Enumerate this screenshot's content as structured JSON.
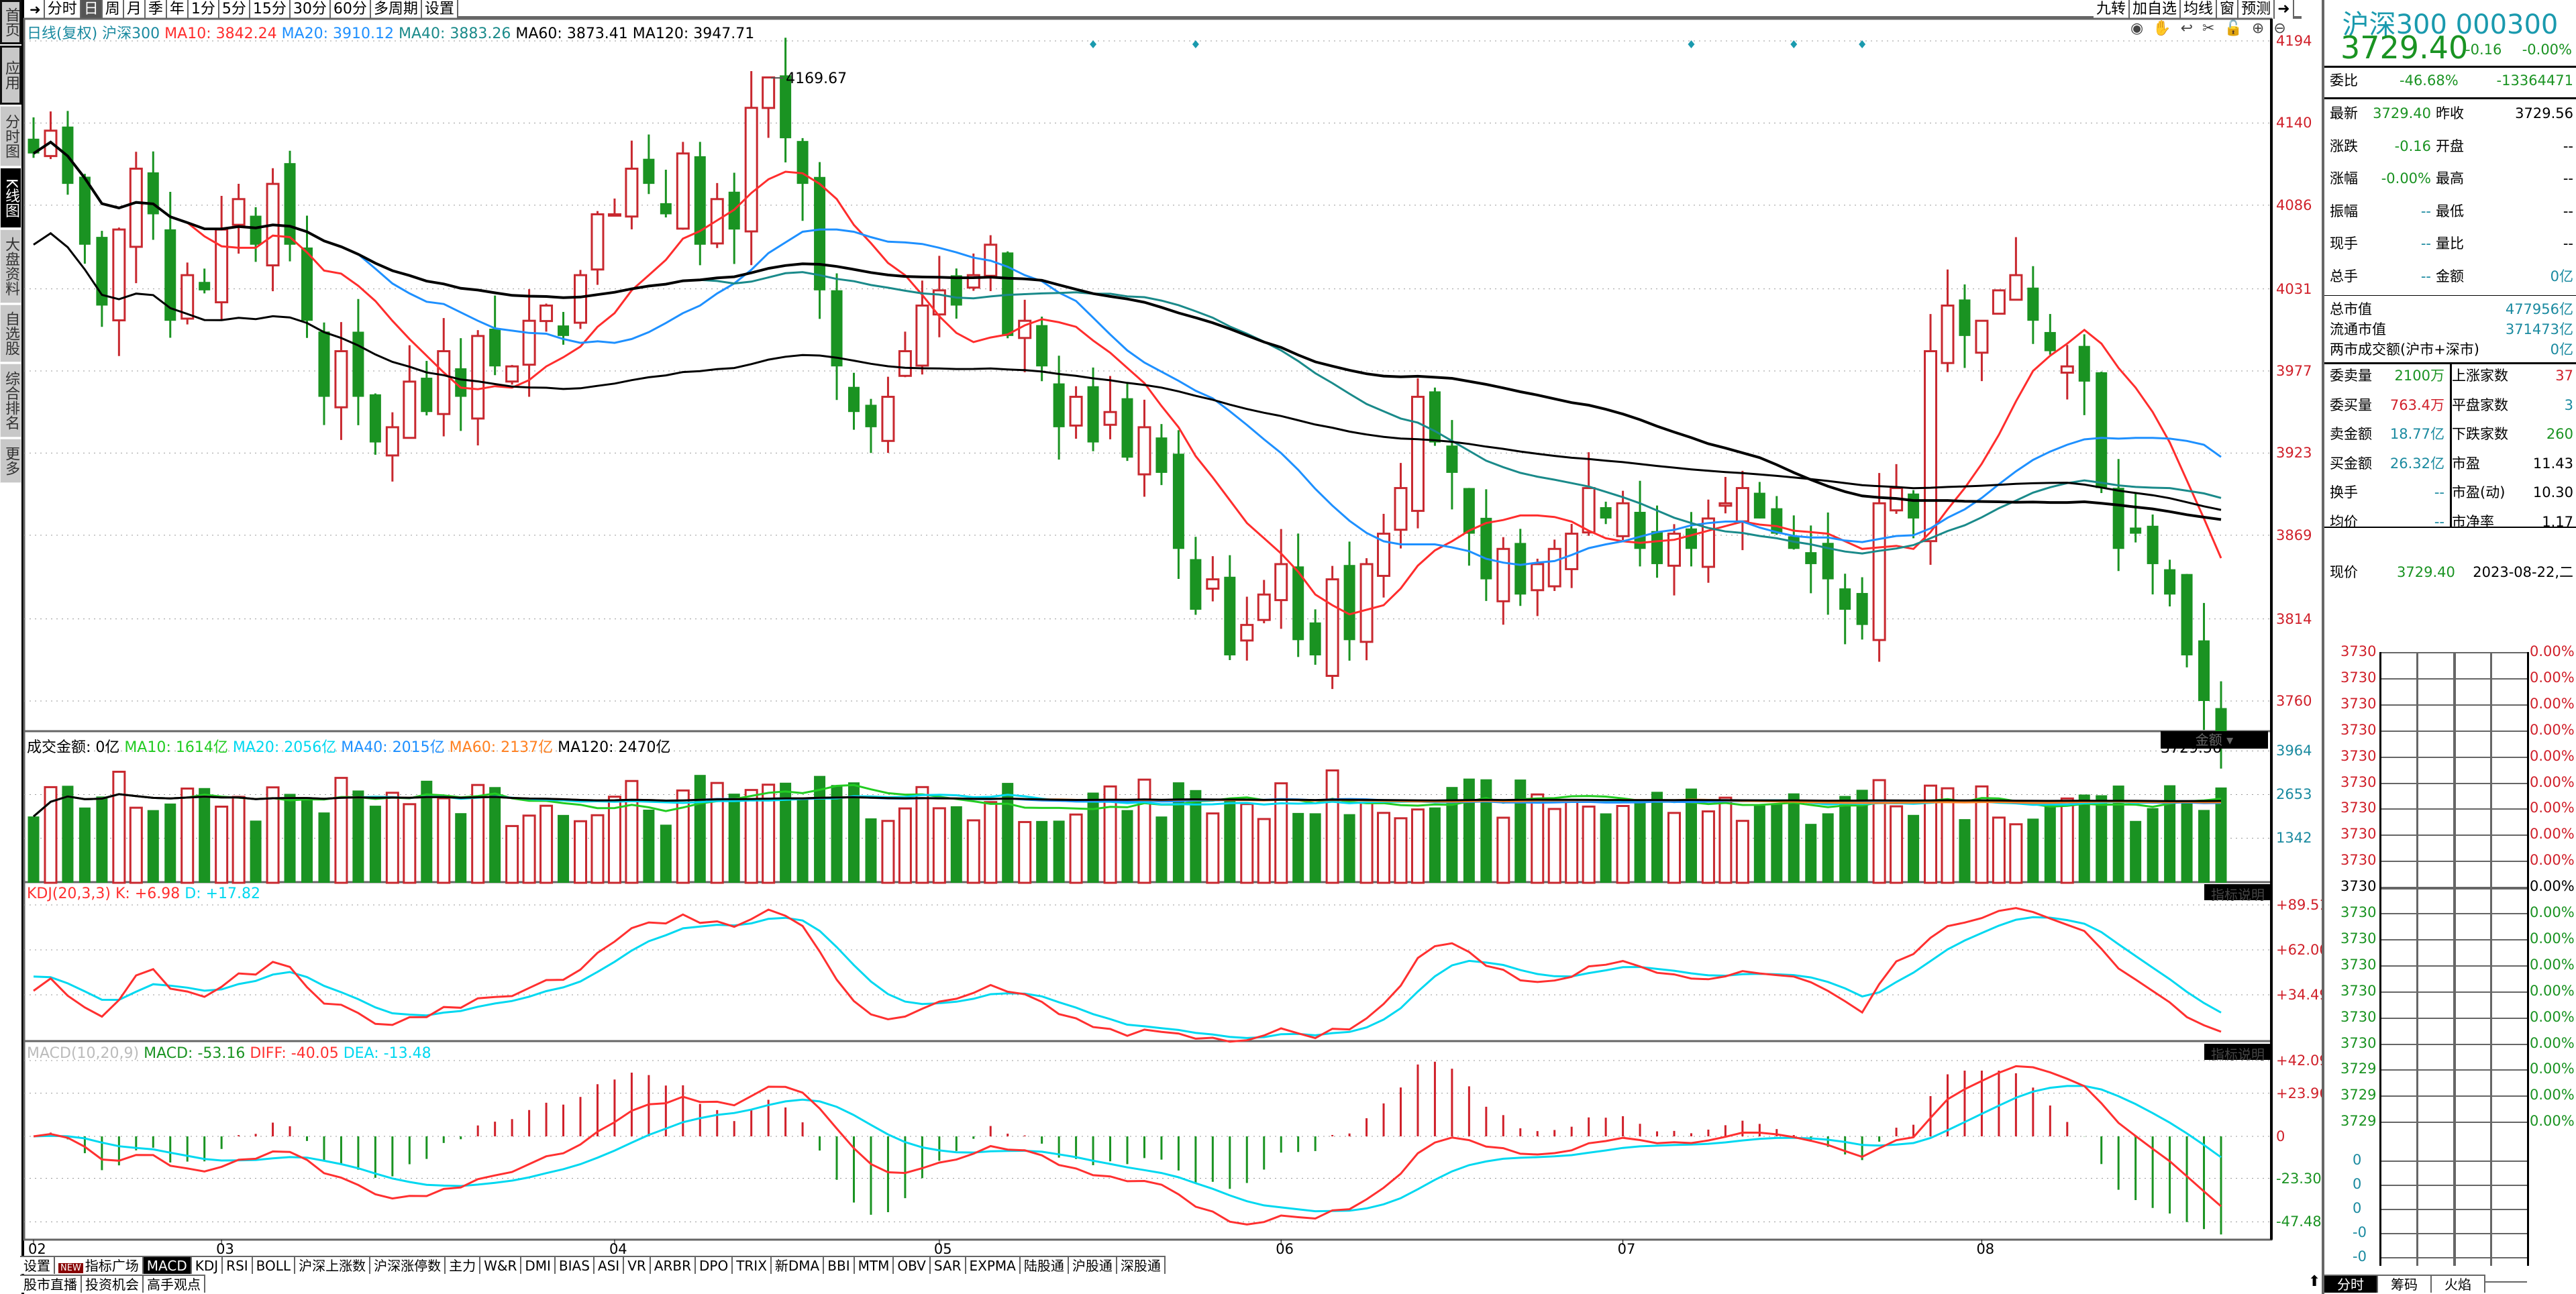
{
  "sidebar": {
    "items": [
      "首页",
      "应用",
      "分时图",
      "K线图",
      "大盘资料",
      "自选股",
      "综合排名",
      "更多"
    ]
  },
  "toolbar": {
    "periods": [
      "分时",
      "日",
      "周",
      "月",
      "季",
      "年",
      "1分",
      "5分",
      "15分",
      "30分",
      "60分",
      "多周期",
      "设置"
    ],
    "active": "日",
    "right": [
      "九转",
      "加自选",
      "均线",
      "窗",
      "预测"
    ]
  },
  "chart_icons": [
    "eye-icon",
    "hand-icon",
    "undo-icon",
    "scissors-icon",
    "lock-icon",
    "zoom-in-icon",
    "zoom-out-icon"
  ],
  "price_legend": {
    "mode": "日线(复权)",
    "name": "沪深300",
    "ma10": "MA10: 3842.24",
    "ma20": "MA20: 3910.12",
    "ma40": "MA40: 3883.26",
    "ma60": "MA60: 3873.41",
    "ma120": "MA120: 3947.71"
  },
  "volume_legend": {
    "amount": "成交金额: 0亿",
    "ma10": "MA10: 1614亿",
    "ma20": "MA20: 2056亿",
    "ma40": "MA40: 2015亿",
    "ma60": "MA60: 2137亿",
    "ma120": "MA120: 2470亿",
    "button": "金额"
  },
  "kdj_legend": {
    "name": "KDJ(20,3,3)",
    "k": "K: +6.98",
    "d": "D: +17.82",
    "button": "指标说明"
  },
  "macd_legend": {
    "name": "MACD(10,20,9)",
    "macd": "MACD: -53.16",
    "diff": "DIFF: -40.05",
    "dea": "DEA: -13.48",
    "button": "指标说明"
  },
  "annotations": {
    "high": "4169.67",
    "last": "3729.56"
  },
  "colors": {
    "up": "#c8282f",
    "down": "#1a9322",
    "ma10": "#ff2d2d",
    "ma20": "#1e90ff",
    "ma40": "#1a8a8a",
    "ma60": "#000000",
    "ma120": "#000000"
  },
  "chart_data": {
    "type": "candlestick",
    "title": "沪深300 日线",
    "price_axis": [
      "4194",
      "4140",
      "4086",
      "4031",
      "3977",
      "3923",
      "3869",
      "3814",
      "3760"
    ],
    "price_range": [
      3760,
      4194
    ],
    "volume_axis": [
      "3964",
      "2653",
      "1342"
    ],
    "kdj_axis": [
      "+89.51",
      "+62.00",
      "+34.49"
    ],
    "macd_axis": [
      "+42.09",
      "+23.96",
      "0",
      "-23.30",
      "-47.48"
    ],
    "x_labels": [
      "02",
      "03",
      "04",
      "05",
      "06",
      "07",
      "08"
    ],
    "month_start_index": [
      0,
      11,
      34,
      53,
      73,
      93,
      114
    ],
    "close": [
      4120,
      4135,
      4100,
      4060,
      4020,
      4070,
      4110,
      4080,
      4010,
      4040,
      4030,
      4070,
      4090,
      4060,
      4100,
      4060,
      4010,
      3960,
      3990,
      3960,
      3930,
      3940,
      3970,
      3950,
      3990,
      3960,
      4000,
      3980,
      3980,
      4010,
      4020,
      4000,
      4040,
      4080,
      4080,
      4110,
      4100,
      4080,
      4120,
      4060,
      4090,
      4070,
      4150,
      4170,
      4130,
      4100,
      4030,
      3980,
      3950,
      3940,
      3960,
      3990,
      4020,
      4030,
      4020,
      4040,
      4060,
      4000,
      4010,
      3980,
      3940,
      3960,
      3930,
      3950,
      3920,
      3940,
      3910,
      3860,
      3820,
      3840,
      3790,
      3810,
      3830,
      3850,
      3800,
      3790,
      3840,
      3800,
      3850,
      3870,
      3900,
      3960,
      3930,
      3910,
      3870,
      3840,
      3860,
      3830,
      3850,
      3860,
      3870,
      3900,
      3880,
      3890,
      3860,
      3850,
      3870,
      3860,
      3880,
      3890,
      3900,
      3880,
      3870,
      3860,
      3850,
      3840,
      3820,
      3810,
      3890,
      3900,
      3880,
      3990,
      4020,
      4000,
      4010,
      4030,
      4040,
      4010,
      3990,
      3980,
      3970,
      3900,
      3860,
      3870,
      3850,
      3830,
      3790,
      3760,
      3729.56
    ]
  },
  "quote": {
    "title": "沪深300 000300",
    "price": "3729.40",
    "change": "-0.16",
    "pct": "-0.00%",
    "weibi_label": "委比",
    "weibi_pct": "-46.68%",
    "weibi_val": "-13364471",
    "rows": [
      {
        "l1": "最新",
        "v1": "3729.40",
        "l2": "昨收",
        "v2": "3729.56",
        "c1": "#1a9322",
        "c2": "#000"
      },
      {
        "l1": "涨跌",
        "v1": "-0.16",
        "l2": "开盘",
        "v2": "--",
        "c1": "#1a9322",
        "c2": "#000"
      },
      {
        "l1": "涨幅",
        "v1": "-0.00%",
        "l2": "最高",
        "v2": "--",
        "c1": "#1a9322",
        "c2": "#000"
      },
      {
        "l1": "振幅",
        "v1": "--",
        "l2": "最低",
        "v2": "--",
        "c1": "#1a8aa0",
        "c2": "#000"
      },
      {
        "l1": "现手",
        "v1": "--",
        "l2": "量比",
        "v2": "--",
        "c1": "#1a8aa0",
        "c2": "#000"
      },
      {
        "l1": "总手",
        "v1": "--",
        "l2": "金额",
        "v2": "0亿",
        "c1": "#1a8aa0",
        "c2": "#1a8aa0"
      }
    ],
    "cap": [
      {
        "l": "总市值",
        "v": "477956亿"
      },
      {
        "l": "流通市值",
        "v": "371473亿"
      },
      {
        "l": "两市成交额(沪市+深市)",
        "v": "0亿"
      }
    ],
    "rows2": [
      {
        "l1": "委卖量",
        "v1": "2100万",
        "l2": "上涨家数",
        "v2": "37",
        "c1": "#1a9322",
        "c2": "#d0202a"
      },
      {
        "l1": "委买量",
        "v1": "763.4万",
        "l2": "平盘家数",
        "v2": "3",
        "c1": "#d0202a",
        "c2": "#1a8aa0"
      },
      {
        "l1": "卖金额",
        "v1": "18.77亿",
        "l2": "下跌家数",
        "v2": "260",
        "c1": "#1a8aa0",
        "c2": "#1a9322"
      },
      {
        "l1": "买金额",
        "v1": "26.32亿",
        "l2": "市盈",
        "v2": "11.43",
        "c1": "#1a8aa0",
        "c2": "#000"
      },
      {
        "l1": "换手",
        "v1": "--",
        "l2": "市盈(动)",
        "v2": "10.30",
        "c1": "#1a8aa0",
        "c2": "#000"
      },
      {
        "l1": "均价",
        "v1": "--",
        "l2": "市净率",
        "v2": "1.17",
        "c1": "#1a8aa0",
        "c2": "#000"
      }
    ],
    "now_label": "现价",
    "now_price": "3729.40",
    "date": "2023-08-22,二"
  },
  "mini": {
    "prices": [
      "3730",
      "3730",
      "3730",
      "3730",
      "3730",
      "3730",
      "3730",
      "3730",
      "3730",
      "3730",
      "3730",
      "3730",
      "3730",
      "3730",
      "3730",
      "3730",
      "3729",
      "3729",
      "3729"
    ],
    "pcts": [
      "0.00%",
      "0.00%",
      "0.00%",
      "0.00%",
      "0.00%",
      "0.00%",
      "0.00%",
      "0.00%",
      "0.00%",
      "0.00%",
      "0.00%",
      "0.00%",
      "0.00%",
      "0.00%",
      "0.00%",
      "0.00%",
      "0.00%",
      "0.00%",
      "0.00%"
    ],
    "vols": [
      "0",
      "0",
      "0",
      "-0",
      "-0",
      "-0"
    ],
    "tabs": [
      "分时",
      "筹码",
      "火焰"
    ]
  },
  "bottom": {
    "settings": "设置",
    "new_badge": "NEW",
    "plaza": "指标广场",
    "indicators": [
      "MACD",
      "KDJ",
      "RSI",
      "BOLL",
      "沪深上涨数",
      "沪深涨停数",
      "主力",
      "W&R",
      "DMI",
      "BIAS",
      "ASI",
      "VR",
      "ARBR",
      "DPO",
      "TRIX",
      "新DMA",
      "BBI",
      "MTM",
      "OBV",
      "SAR",
      "EXPMA",
      "陆股通",
      "沪股通",
      "深股通"
    ],
    "active": "MACD",
    "row2": [
      "股市直播",
      "投资机会",
      "高手观点"
    ]
  }
}
